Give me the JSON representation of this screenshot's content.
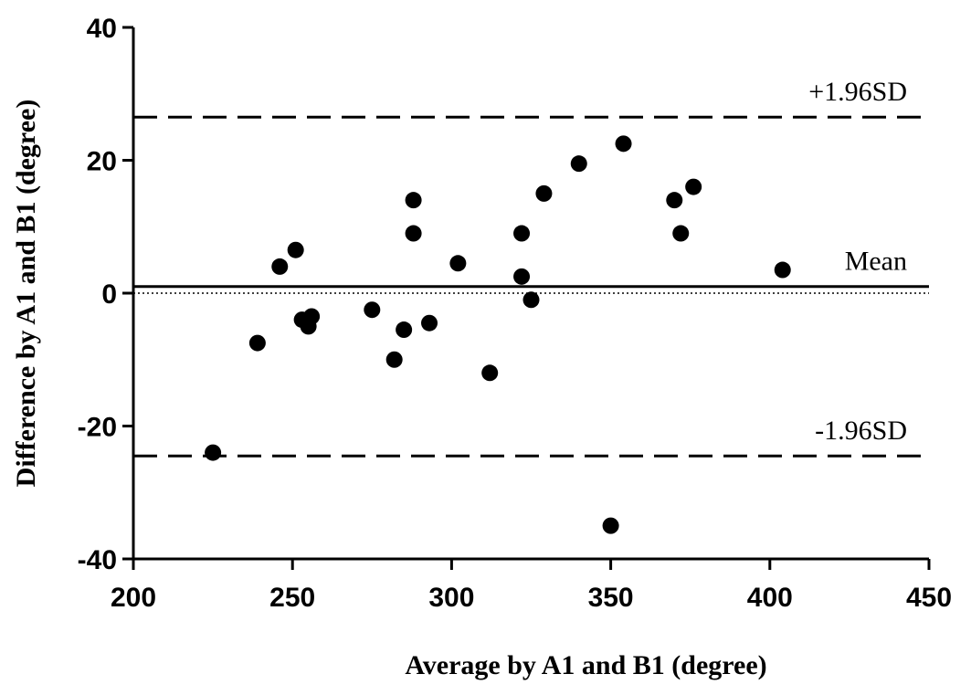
{
  "chart_data": {
    "type": "scatter",
    "title": "",
    "xlabel": "Average by A1 and B1 (degree)",
    "ylabel": "Difference by A1 and B1 (degree)",
    "xlim": [
      200,
      450
    ],
    "ylim": [
      -40,
      40
    ],
    "xticks": [
      200,
      250,
      300,
      350,
      400,
      450
    ],
    "yticks": [
      -40,
      -20,
      0,
      20,
      40
    ],
    "grid": false,
    "points": [
      {
        "x": 225,
        "y": -24
      },
      {
        "x": 239,
        "y": -7.5
      },
      {
        "x": 246,
        "y": 4
      },
      {
        "x": 251,
        "y": 6.5
      },
      {
        "x": 253,
        "y": -4
      },
      {
        "x": 255,
        "y": -5
      },
      {
        "x": 256,
        "y": -3.5
      },
      {
        "x": 275,
        "y": -2.5
      },
      {
        "x": 282,
        "y": -10
      },
      {
        "x": 285,
        "y": -5.5
      },
      {
        "x": 288,
        "y": 14
      },
      {
        "x": 288,
        "y": 9
      },
      {
        "x": 293,
        "y": -4.5
      },
      {
        "x": 302,
        "y": 4.5
      },
      {
        "x": 312,
        "y": -12
      },
      {
        "x": 322,
        "y": 9
      },
      {
        "x": 322,
        "y": 2.5
      },
      {
        "x": 325,
        "y": -1
      },
      {
        "x": 329,
        "y": 15
      },
      {
        "x": 340,
        "y": 19.5
      },
      {
        "x": 350,
        "y": -35
      },
      {
        "x": 354,
        "y": 22.5
      },
      {
        "x": 370,
        "y": 14
      },
      {
        "x": 372,
        "y": 9
      },
      {
        "x": 376,
        "y": 16
      },
      {
        "x": 404,
        "y": 3.5
      }
    ],
    "reference_lines": [
      {
        "label": "+1.96SD",
        "y": 26.5,
        "style": "dashed"
      },
      {
        "label": "Mean",
        "y": 1.0,
        "style": "solid"
      },
      {
        "label": "",
        "y": 0,
        "style": "dotted"
      },
      {
        "label": "-1.96SD",
        "y": -24.5,
        "style": "dashed"
      }
    ]
  }
}
